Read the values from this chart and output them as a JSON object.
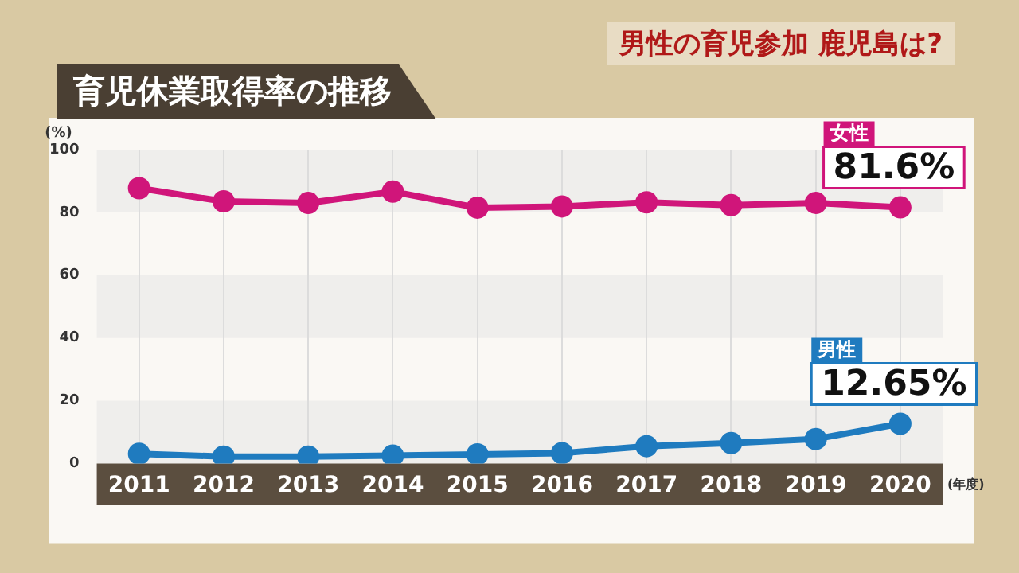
{
  "chart_data": {
    "type": "line",
    "title": "育児休業取得率の推移",
    "subtitle": "男性の育児参加 鹿児島は?",
    "ylabel": "(%)",
    "xlabel": "(年度)",
    "categories": [
      "2011",
      "2012",
      "2013",
      "2014",
      "2015",
      "2016",
      "2017",
      "2018",
      "2019",
      "2020"
    ],
    "series": [
      {
        "name": "女性",
        "color": "#d0157a",
        "values": [
          87.7,
          83.5,
          83,
          86.6,
          81.5,
          81.9,
          83.2,
          82.3,
          83,
          81.6
        ],
        "value_labels": [
          null,
          null,
          null,
          null,
          null,
          null,
          null,
          null,
          null,
          "81.6%"
        ]
      },
      {
        "name": "男性",
        "color": "#1f7bbf",
        "values": [
          3.1,
          2.2,
          2.2,
          2.5,
          2.9,
          3.3,
          5.5,
          6.5,
          7.8,
          12.65
        ],
        "value_labels": [
          null,
          null,
          null,
          null,
          null,
          null,
          null,
          null,
          null,
          "12.65%"
        ]
      }
    ],
    "ylim": [
      0,
      100
    ],
    "yticks": [
      0,
      20,
      40,
      60,
      80,
      100
    ],
    "grid": true,
    "legend": false,
    "marker": "circle",
    "line_style": "solid"
  }
}
